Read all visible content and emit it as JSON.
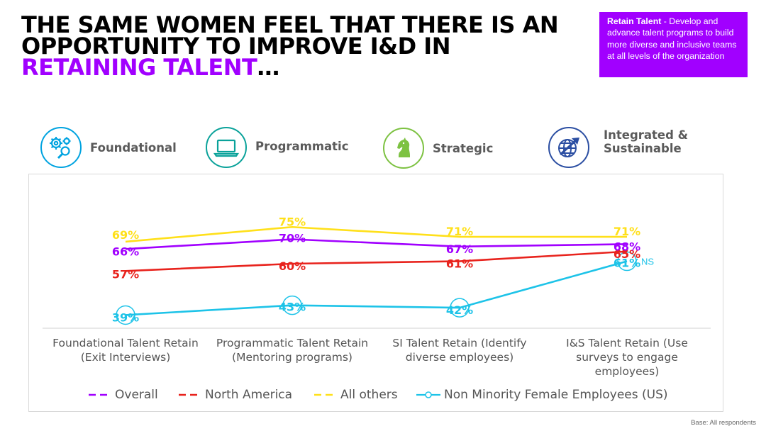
{
  "title": {
    "line1": "THE SAME WOMEN FEEL THAT THERE IS AN",
    "line2": "OPPORTUNITY TO IMPROVE I&D IN",
    "accent": "RETAINING TALENT",
    "suffix": "…"
  },
  "callout": {
    "bold": "Retain Talent",
    "text": " - Develop and advance talent programs to build more diverse and inclusive teams at all levels of the organization"
  },
  "stages": [
    {
      "label_line1": "Foundational",
      "label_line2": "",
      "icon": "gears-magnifier-icon",
      "color": "#00A3E0"
    },
    {
      "label_line1": "Programmatic",
      "label_line2": "",
      "icon": "laptop-icon",
      "color": "#0AA29A"
    },
    {
      "label_line1": "Strategic",
      "label_line2": "",
      "icon": "chess-knight-icon",
      "color": "#7DC242"
    },
    {
      "label_line1": "Integrated &",
      "label_line2": "Sustainable",
      "icon": "globe-arrow-icon",
      "color": "#2B4EA2"
    }
  ],
  "chart_data": {
    "type": "line",
    "categories": [
      "Foundational Talent Retain (Exit Interviews)",
      "Programmatic Talent Retain (Mentoring programs)",
      "SI Talent Retain (Identify diverse employees)",
      "I&S Talent Retain (Use surveys to engage employees)"
    ],
    "category_lines": [
      [
        "Foundational Talent Retain",
        "(Exit Interviews)"
      ],
      [
        "Programmatic Talent Retain",
        "(Mentoring programs)"
      ],
      [
        "SI Talent Retain (Identify",
        "diverse employees)"
      ],
      [
        "I&S Talent Retain (Use",
        "surveys to engage",
        "employees)"
      ]
    ],
    "series": [
      {
        "name": "Overall",
        "color": "#A100FF",
        "values": [
          66,
          70,
          67,
          68
        ],
        "labels": [
          "66%",
          "70%",
          "67%",
          "68%"
        ]
      },
      {
        "name": "North America",
        "color": "#E8231D",
        "values": [
          57,
          60,
          61,
          65
        ],
        "labels": [
          "57%",
          "60%",
          "61%",
          "65%"
        ]
      },
      {
        "name": "All others",
        "color": "#FFE01A",
        "values": [
          69,
          75,
          71,
          71
        ],
        "labels": [
          "69%",
          "75%",
          "71%",
          "71%"
        ]
      },
      {
        "name": "Non Minority Female Employees (US)",
        "color": "#1DC3E8",
        "values": [
          39,
          43,
          42,
          61
        ],
        "labels": [
          "39%",
          "43%",
          "42%",
          "61%"
        ],
        "markers": true
      }
    ],
    "annotation": "NS",
    "ylim": [
      30,
      80
    ],
    "grid": false,
    "legend_position": "bottom"
  },
  "footer": "Base: All respondents"
}
